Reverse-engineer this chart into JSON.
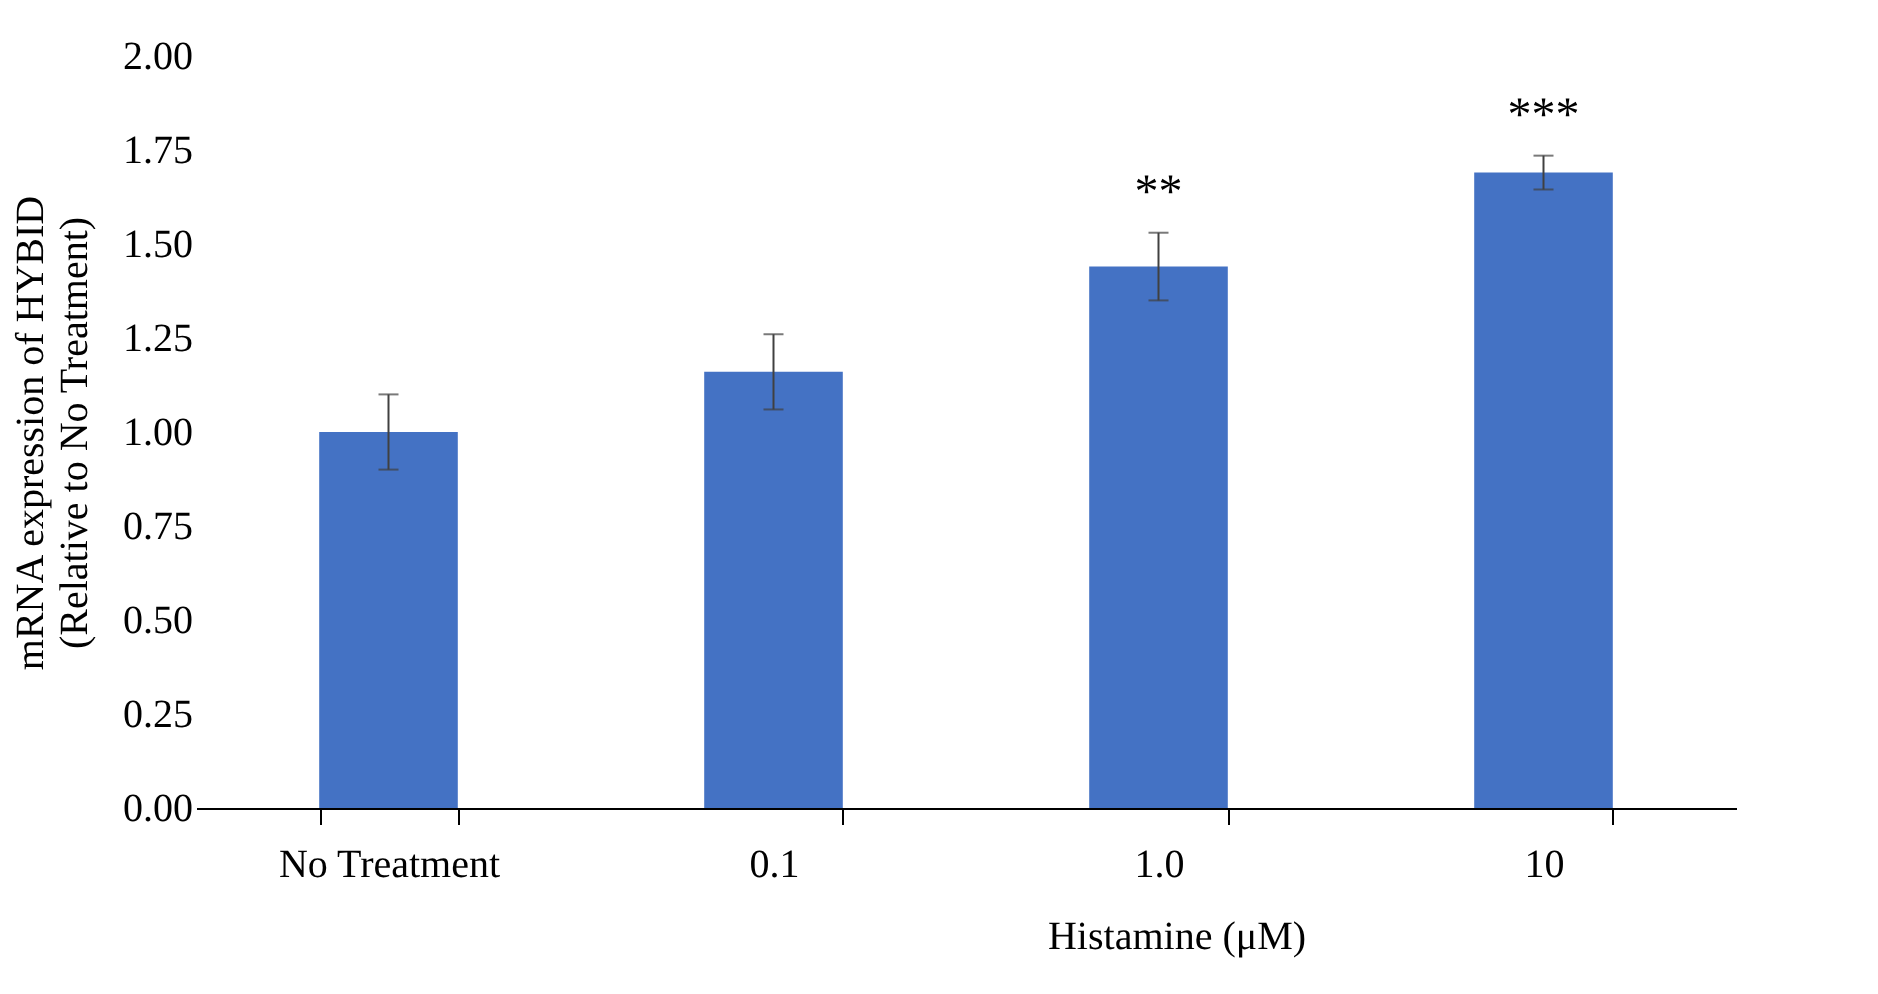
{
  "chart_data": {
    "type": "bar",
    "ylabel": "mRNA expression of HYBID\n(Relative to No Treatment)",
    "xlabel": "Histamine (μM)",
    "categories": [
      "No Treatment",
      "0.1",
      "1.0",
      "10"
    ],
    "values": [
      1.0,
      1.16,
      1.44,
      1.69
    ],
    "errors": [
      0.1,
      0.1,
      0.09,
      0.045
    ],
    "color": "#4472c4",
    "ylim": [
      0,
      2
    ],
    "yticks": [
      {
        "value": 0,
        "label": "0.00"
      },
      {
        "value": 0.25,
        "label": "0.25"
      },
      {
        "value": 0.5,
        "label": "0.50"
      },
      {
        "value": 0.75,
        "label": "0.75"
      },
      {
        "value": 1,
        "label": "1.00"
      },
      {
        "value": 1.25,
        "label": "1.25"
      },
      {
        "value": 1.5,
        "label": "1.50"
      },
      {
        "value": 1.75,
        "label": "1.75"
      },
      {
        "value": 2,
        "label": "2.00"
      }
    ],
    "annotations": [
      {
        "text": "**",
        "x": "1.0",
        "y": 1.53
      },
      {
        "text": "***",
        "x": "10",
        "y": 1.735
      }
    ]
  }
}
